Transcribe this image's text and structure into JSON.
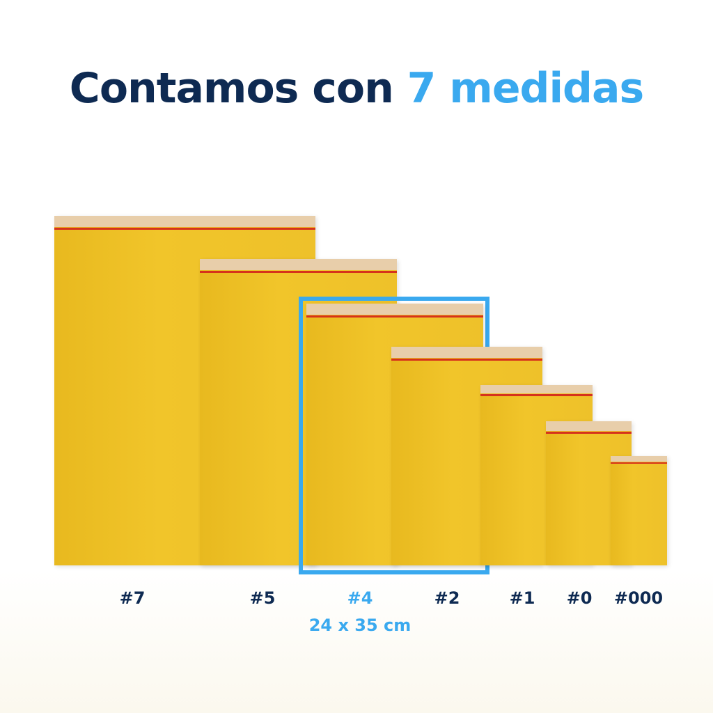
{
  "title": {
    "main": "Contamos con ",
    "accent": "7 medidas"
  },
  "sizes": [
    {
      "label": "#7"
    },
    {
      "label": "#5"
    },
    {
      "label": "#4",
      "dimensions": "24 x 35 cm",
      "highlighted": true
    },
    {
      "label": "#2"
    },
    {
      "label": "#1"
    },
    {
      "label": "#0"
    },
    {
      "label": "#000"
    }
  ],
  "colors": {
    "navy": "#0e2a52",
    "accent": "#3aa9ef",
    "envelope": "#f1c52a",
    "seal": "#d6321b"
  }
}
